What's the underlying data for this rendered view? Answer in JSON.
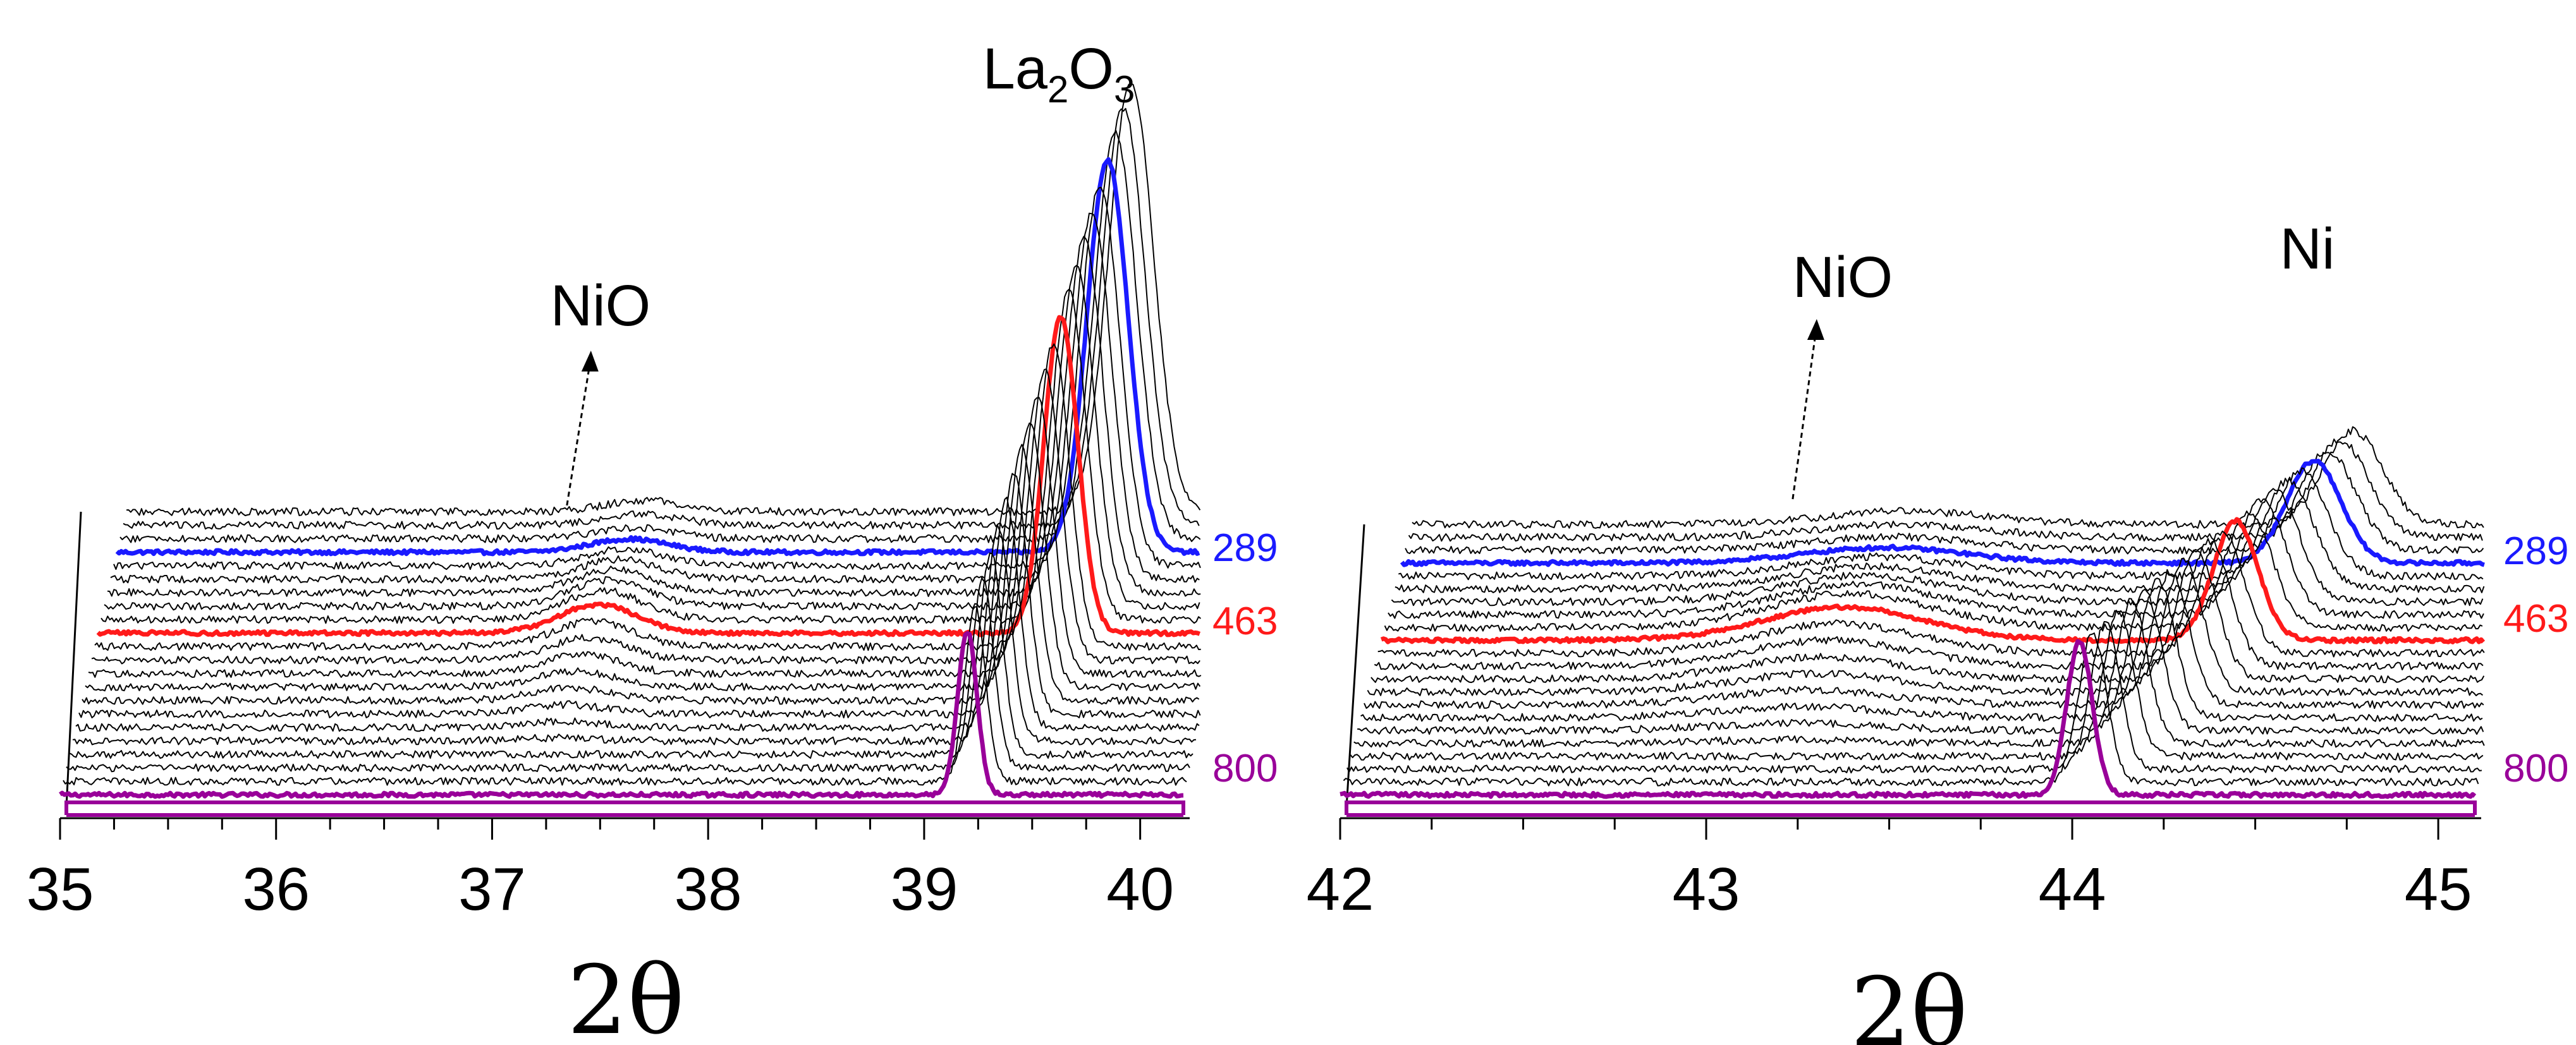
{
  "chart_data": [
    {
      "type": "line",
      "layout": "waterfall",
      "title": "",
      "xlabel": "2θ",
      "ylabel": "",
      "xlim": [
        35,
        40.2
      ],
      "xticks": [
        "35",
        "36",
        "37",
        "38",
        "39",
        "40"
      ],
      "grid": false,
      "series_count": 22,
      "highlighted_series": [
        {
          "name": "289",
          "color": "#1a1aff"
        },
        {
          "name": "463",
          "color": "#ff1a1a"
        },
        {
          "name": "800",
          "color": "#990099"
        }
      ],
      "peaks": [
        {
          "name": "NiO",
          "x": 37.2
        },
        {
          "name": "La2O3",
          "x": 39.2
        }
      ],
      "annotations": [
        {
          "text": "NiO",
          "x": 37.2
        },
        {
          "text": "La",
          "sub1": "2",
          "mid": "O",
          "sub2": "3",
          "x": 39.6
        }
      ]
    },
    {
      "type": "line",
      "layout": "waterfall",
      "title": "",
      "xlabel": "2θ",
      "ylabel": "",
      "xlim": [
        42,
        45.1
      ],
      "xticks": [
        "42",
        "43",
        "44",
        "45"
      ],
      "grid": false,
      "series_count": 22,
      "highlighted_series": [
        {
          "name": "289",
          "color": "#1a1aff"
        },
        {
          "name": "463",
          "color": "#ff1a1a"
        },
        {
          "name": "800",
          "color": "#990099"
        }
      ],
      "peaks": [
        {
          "name": "NiO",
          "x": 43.15
        },
        {
          "name": "Ni",
          "x": 44.02
        }
      ],
      "annotations": [
        {
          "text": "NiO",
          "x": 43.2
        },
        {
          "text": "Ni",
          "x": 44.6
        }
      ]
    }
  ]
}
